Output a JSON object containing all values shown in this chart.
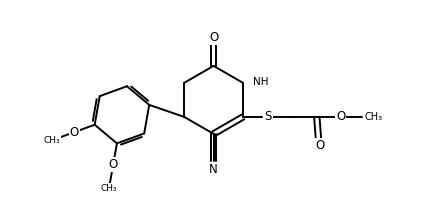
{
  "bg_color": "#ffffff",
  "line_color": "#000000",
  "lw": 1.4,
  "fs": 7.5,
  "figsize": [
    4.23,
    2.18
  ],
  "dpi": 100,
  "xlim": [
    0,
    10
  ],
  "ylim": [
    0,
    5
  ]
}
